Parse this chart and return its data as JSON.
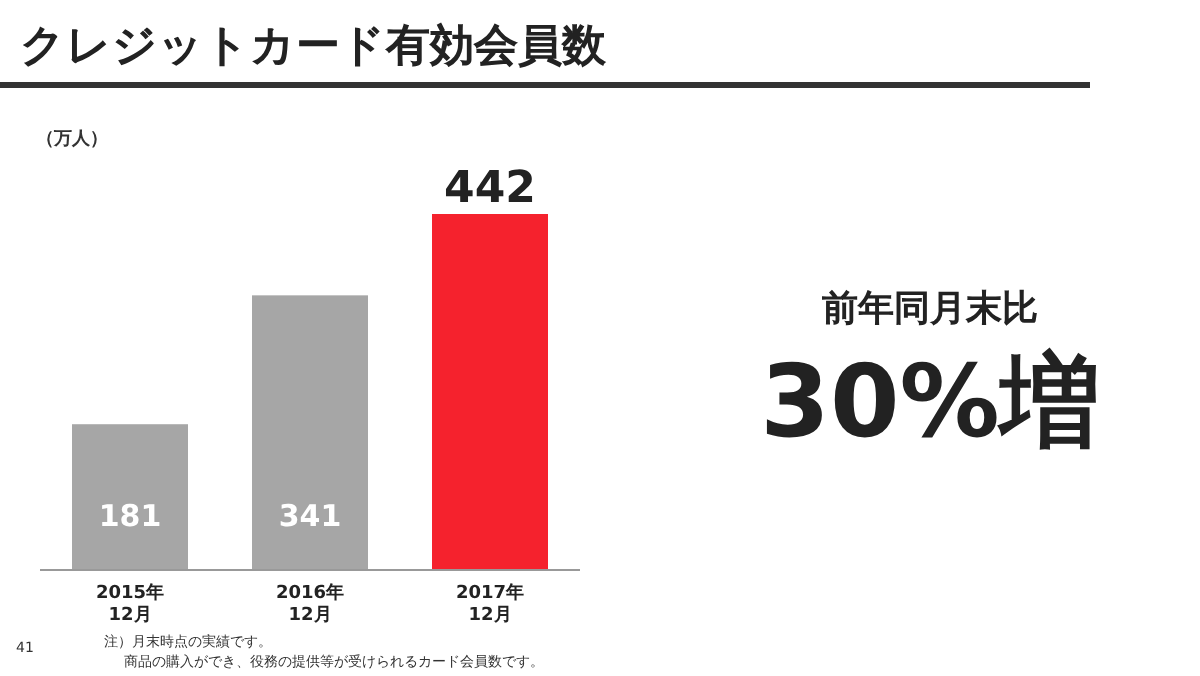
{
  "chart_data": {
    "type": "bar",
    "title": "クレジットカード有効会員数",
    "ylabel": "（万人）",
    "categories": [
      "2015年\n12月",
      "2016年\n12月",
      "2017年\n12月"
    ],
    "values": [
      181,
      341,
      442
    ],
    "colors": [
      "#a6a6a6",
      "#a6a6a6",
      "#f5222d"
    ],
    "data_labels": true,
    "annotations": [
      "前年同月末比",
      "30%増",
      "注）月末時点の実績です。",
      "商品の購入ができ、役務の提供等が受けられるカード会員数です。",
      "41"
    ]
  }
}
